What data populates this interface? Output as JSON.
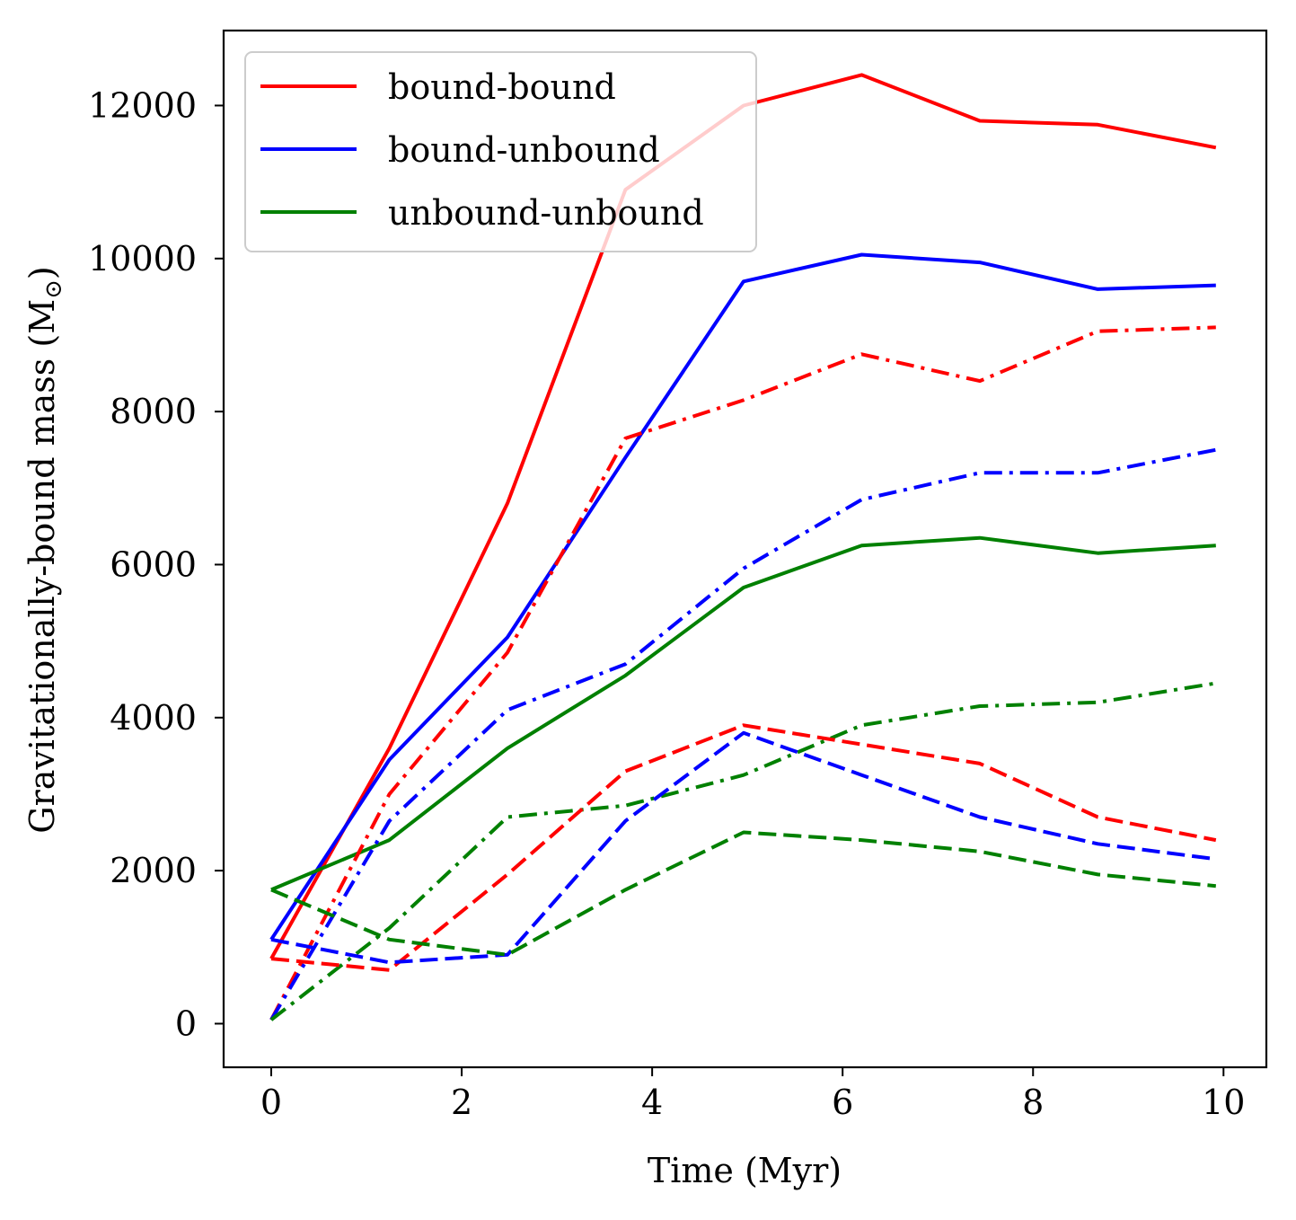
{
  "chart_data": {
    "type": "line",
    "xlabel": "Time (Myr)",
    "ylabel": "Gravitationally-bound mass (M",
    "ylabel_symbol": "⊙",
    "ylabel_close": ")",
    "xlim": [
      -0.5,
      10.45
    ],
    "ylim": [
      -570,
      12980
    ],
    "xticks": [
      0,
      2,
      4,
      6,
      8,
      10
    ],
    "xtick_labels": [
      "0",
      "2",
      "4",
      "6",
      "8",
      "10"
    ],
    "yticks": [
      0,
      2000,
      4000,
      6000,
      8000,
      10000,
      12000
    ],
    "ytick_labels": [
      "0",
      "2000",
      "4000",
      "6000",
      "8000",
      "10000",
      "12000"
    ],
    "x": [
      0,
      1.24,
      2.48,
      3.72,
      4.96,
      6.2,
      7.44,
      8.68,
      9.92
    ],
    "legend": {
      "placement": "top-left",
      "entries": [
        {
          "label": "bound-bound",
          "color": "#ff0000"
        },
        {
          "label": "bound-unbound",
          "color": "#0000ff"
        },
        {
          "label": "unbound-unbound",
          "color": "#008000"
        }
      ]
    },
    "series": [
      {
        "name": "bound-bound (solid)",
        "color": "#ff0000",
        "style": "solid",
        "values": [
          850,
          3600,
          6800,
          10900,
          12000,
          12400,
          11800,
          11750,
          11450
        ]
      },
      {
        "name": "bound-unbound (solid)",
        "color": "#0000ff",
        "style": "solid",
        "values": [
          1100,
          3450,
          5050,
          7400,
          9700,
          10050,
          9950,
          9600,
          9650
        ]
      },
      {
        "name": "unbound-unbound (solid)",
        "color": "#008000",
        "style": "solid",
        "values": [
          1750,
          2400,
          3600,
          4550,
          5700,
          6250,
          6350,
          6150,
          6250
        ]
      },
      {
        "name": "bound-bound (dash-dot)",
        "color": "#ff0000",
        "style": "dashdot",
        "values": [
          50,
          3000,
          4850,
          7650,
          8150,
          8750,
          8400,
          9050,
          9100
        ]
      },
      {
        "name": "bound-unbound (dash-dot)",
        "color": "#0000ff",
        "style": "dashdot",
        "values": [
          50,
          2650,
          4100,
          4700,
          5950,
          6850,
          7200,
          7200,
          7500
        ]
      },
      {
        "name": "unbound-unbound (dash-dot)",
        "color": "#008000",
        "style": "dashdot",
        "values": [
          50,
          1250,
          2700,
          2850,
          3250,
          3900,
          4150,
          4200,
          4450
        ]
      },
      {
        "name": "bound-bound (dashed)",
        "color": "#ff0000",
        "style": "dashed",
        "values": [
          850,
          700,
          1950,
          3300,
          3900,
          3650,
          3400,
          2700,
          2400
        ]
      },
      {
        "name": "bound-unbound (dashed)",
        "color": "#0000ff",
        "style": "dashed",
        "values": [
          1100,
          800,
          900,
          2650,
          3800,
          3250,
          2700,
          2350,
          2150
        ]
      },
      {
        "name": "unbound-unbound (dashed)",
        "color": "#008000",
        "style": "dashed",
        "values": [
          1750,
          1100,
          900,
          1750,
          2500,
          2400,
          2250,
          1950,
          1800
        ]
      }
    ]
  }
}
